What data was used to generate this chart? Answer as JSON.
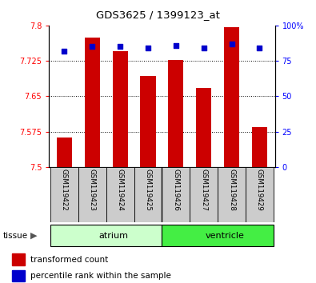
{
  "title": "GDS3625 / 1399123_at",
  "samples": [
    "GSM119422",
    "GSM119423",
    "GSM119424",
    "GSM119425",
    "GSM119426",
    "GSM119427",
    "GSM119428",
    "GSM119429"
  ],
  "bar_values": [
    7.563,
    7.775,
    7.745,
    7.693,
    7.727,
    7.667,
    7.797,
    7.585
  ],
  "bar_bottom": 7.5,
  "percentile_values": [
    82,
    85,
    85,
    84,
    86,
    84,
    87,
    84
  ],
  "ylim_left": [
    7.5,
    7.8
  ],
  "ylim_right": [
    0,
    100
  ],
  "yticks_left": [
    7.5,
    7.575,
    7.65,
    7.725,
    7.8
  ],
  "ytick_labels_left": [
    "7.5",
    "7.575",
    "7.65",
    "7.725",
    "7.8"
  ],
  "yticks_right": [
    0,
    25,
    50,
    75,
    100
  ],
  "ytick_labels_right": [
    "0",
    "25",
    "50",
    "75",
    "100%"
  ],
  "bar_color": "#cc0000",
  "percentile_color": "#0000cc",
  "atrium_color": "#ccffcc",
  "ventricle_color": "#44ee44",
  "label_bg_color": "#cccccc"
}
